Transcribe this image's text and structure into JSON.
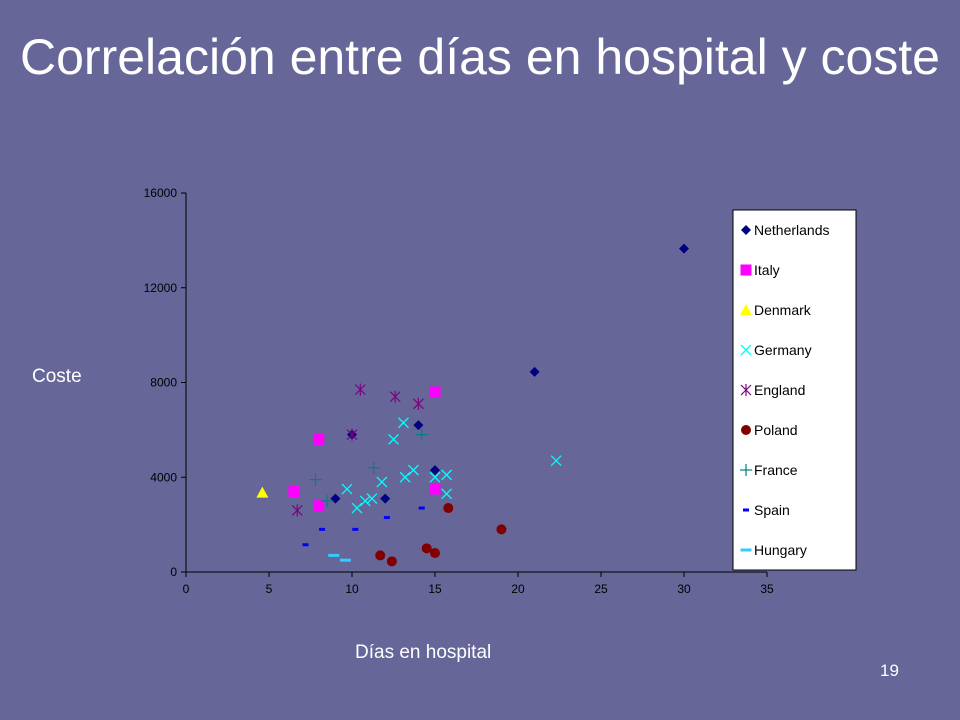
{
  "slide": {
    "title": "Correlación entre días en hospital y coste",
    "page_number": "19"
  },
  "chart_data": {
    "type": "scatter",
    "title": "",
    "xlabel": "Días en hospital",
    "ylabel": "Coste",
    "xlim": [
      0,
      35
    ],
    "ylim": [
      0,
      16000
    ],
    "xticks": [
      0,
      5,
      10,
      15,
      20,
      25,
      30,
      35
    ],
    "yticks": [
      0,
      4000,
      8000,
      12000,
      16000
    ],
    "grid": false,
    "legend_position": "right",
    "series": [
      {
        "name": "Netherlands",
        "marker": "diamond",
        "color": "#000080",
        "points": [
          [
            9,
            3100
          ],
          [
            10,
            5800
          ],
          [
            12,
            3100
          ],
          [
            14,
            6200
          ],
          [
            15,
            4300
          ],
          [
            21,
            8450
          ],
          [
            30,
            13650
          ]
        ]
      },
      {
        "name": "Italy",
        "marker": "square",
        "color": "#ff00ff",
        "points": [
          [
            6.5,
            3400
          ],
          [
            8,
            5600
          ],
          [
            8,
            2800
          ],
          [
            15,
            7600
          ],
          [
            15,
            3500
          ]
        ]
      },
      {
        "name": "Denmark",
        "marker": "triangle",
        "color": "#ffff00",
        "points": [
          [
            4.6,
            3350
          ]
        ]
      },
      {
        "name": "Germany",
        "marker": "x",
        "color": "#00ffff",
        "points": [
          [
            9.7,
            3500
          ],
          [
            10.3,
            2700
          ],
          [
            10.8,
            3000
          ],
          [
            11.2,
            3100
          ],
          [
            11.8,
            3800
          ],
          [
            12.5,
            5600
          ],
          [
            13.1,
            6300
          ],
          [
            13.2,
            4000
          ],
          [
            13.7,
            4300
          ],
          [
            15,
            4000
          ],
          [
            15.7,
            3300
          ],
          [
            15.7,
            4100
          ],
          [
            22.3,
            4700
          ]
        ]
      },
      {
        "name": "England",
        "marker": "asterisk",
        "color": "#800080",
        "points": [
          [
            6.7,
            2600
          ],
          [
            10,
            5800
          ],
          [
            10.5,
            7700
          ],
          [
            12.6,
            7400
          ],
          [
            14,
            7100
          ]
        ]
      },
      {
        "name": "Poland",
        "marker": "circle",
        "color": "#800000",
        "points": [
          [
            11.7,
            700
          ],
          [
            12.4,
            450
          ],
          [
            14.5,
            1000
          ],
          [
            15,
            800
          ],
          [
            15.8,
            2700
          ],
          [
            19,
            1800
          ]
        ]
      },
      {
        "name": "France",
        "marker": "plus",
        "color": "#008080",
        "points": [
          [
            7.8,
            3900
          ],
          [
            8.5,
            3000
          ],
          [
            11.3,
            4400
          ],
          [
            14.2,
            5800
          ]
        ]
      },
      {
        "name": "Spain",
        "marker": "dash",
        "color": "#0000ff",
        "points": [
          [
            7.2,
            1150
          ],
          [
            8.2,
            1800
          ],
          [
            10.2,
            1800
          ],
          [
            12.1,
            2300
          ],
          [
            14.2,
            2700
          ]
        ]
      },
      {
        "name": "Hungary",
        "marker": "dash-wide",
        "color": "#33ccff",
        "points": [
          [
            8.9,
            700
          ],
          [
            9.6,
            500
          ]
        ]
      }
    ]
  }
}
